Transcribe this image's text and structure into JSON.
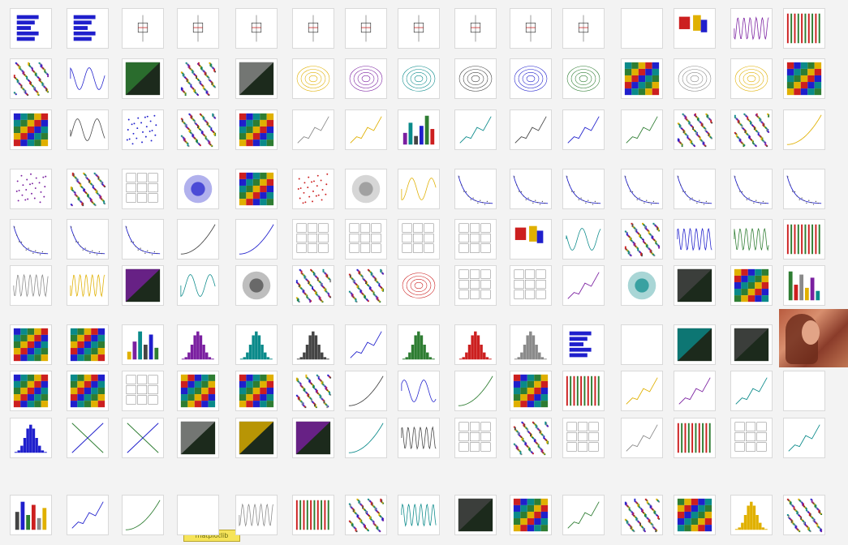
{
  "page": {
    "title": ""
  },
  "logo": {
    "label": "matplotlib"
  },
  "palette": [
    "#1f1fcc",
    "#2e7d32",
    "#cc1f1f",
    "#8a8a8a",
    "#e0b000",
    "#7a1fa0",
    "#0a8a8a",
    "#444444"
  ],
  "thumbnails": [
    {
      "kind": "hbar"
    },
    {
      "kind": "hbar"
    },
    {
      "kind": "box"
    },
    {
      "kind": "box"
    },
    {
      "kind": "box"
    },
    {
      "kind": "box"
    },
    {
      "kind": "box"
    },
    {
      "kind": "box"
    },
    {
      "kind": "box"
    },
    {
      "kind": "box"
    },
    {
      "kind": "box"
    },
    {
      "kind": "blank"
    },
    {
      "kind": "rects"
    },
    {
      "kind": "wave"
    },
    {
      "kind": "stripes"
    },
    {
      "kind": "noise"
    },
    {
      "kind": "sine"
    },
    {
      "kind": "dark"
    },
    {
      "kind": "noise"
    },
    {
      "kind": "dark"
    },
    {
      "kind": "contour"
    },
    {
      "kind": "contour"
    },
    {
      "kind": "contour"
    },
    {
      "kind": "contour"
    },
    {
      "kind": "contour"
    },
    {
      "kind": "contour"
    },
    {
      "kind": "heat"
    },
    {
      "kind": "contour"
    },
    {
      "kind": "contour"
    },
    {
      "kind": "heat"
    },
    {
      "kind": "heat"
    },
    {
      "kind": "sine"
    },
    {
      "kind": "scatter"
    },
    {
      "kind": "noise"
    },
    {
      "kind": "heat"
    },
    {
      "kind": "line"
    },
    {
      "kind": "line"
    },
    {
      "kind": "bars"
    },
    {
      "kind": "line"
    },
    {
      "kind": "line"
    },
    {
      "kind": "line"
    },
    {
      "kind": "line"
    },
    {
      "kind": "noise"
    },
    {
      "kind": "noise"
    },
    {
      "kind": "curve"
    },
    {
      "kind": "scatter"
    },
    {
      "kind": "noise"
    },
    {
      "kind": "grid"
    },
    {
      "kind": "blob"
    },
    {
      "kind": "heat"
    },
    {
      "kind": "scatter"
    },
    {
      "kind": "blob"
    },
    {
      "kind": "sine"
    },
    {
      "kind": "decay"
    },
    {
      "kind": "decay"
    },
    {
      "kind": "decay"
    },
    {
      "kind": "decay"
    },
    {
      "kind": "decay"
    },
    {
      "kind": "decay"
    },
    {
      "kind": "decay"
    },
    {
      "kind": "decay"
    },
    {
      "kind": "decay"
    },
    {
      "kind": "decay"
    },
    {
      "kind": "curve"
    },
    {
      "kind": "curve"
    },
    {
      "kind": "grid"
    },
    {
      "kind": "grid"
    },
    {
      "kind": "grid"
    },
    {
      "kind": "grid"
    },
    {
      "kind": "rects"
    },
    {
      "kind": "sine"
    },
    {
      "kind": "noise"
    },
    {
      "kind": "wave"
    },
    {
      "kind": "wave"
    },
    {
      "kind": "stripes"
    },
    {
      "kind": "wave"
    },
    {
      "kind": "wave"
    },
    {
      "kind": "dark"
    },
    {
      "kind": "sine"
    },
    {
      "kind": "blob"
    },
    {
      "kind": "noise"
    },
    {
      "kind": "noise"
    },
    {
      "kind": "contour"
    },
    {
      "kind": "grid"
    },
    {
      "kind": "grid"
    },
    {
      "kind": "line"
    },
    {
      "kind": "blob"
    },
    {
      "kind": "dark"
    },
    {
      "kind": "heat"
    },
    {
      "kind": "bars"
    },
    {
      "kind": "heat"
    },
    {
      "kind": "heat"
    },
    {
      "kind": "bars"
    },
    {
      "kind": "hist"
    },
    {
      "kind": "hist"
    },
    {
      "kind": "hist"
    },
    {
      "kind": "line"
    },
    {
      "kind": "hist"
    },
    {
      "kind": "hist"
    },
    {
      "kind": "hist"
    },
    {
      "kind": "hbar"
    },
    {
      "kind": "blank"
    },
    {
      "kind": "dark"
    },
    {
      "kind": "dark"
    },
    {
      "kind": "blank"
    },
    {
      "kind": "heat"
    },
    {
      "kind": "heat"
    },
    {
      "kind": "grid"
    },
    {
      "kind": "heat"
    },
    {
      "kind": "heat"
    },
    {
      "kind": "noise"
    },
    {
      "kind": "curve"
    },
    {
      "kind": "sine"
    },
    {
      "kind": "curve"
    },
    {
      "kind": "heat"
    },
    {
      "kind": "stripes"
    },
    {
      "kind": "line"
    },
    {
      "kind": "line"
    },
    {
      "kind": "line"
    },
    {
      "kind": "blank"
    },
    {
      "kind": "hist"
    },
    {
      "kind": "cross"
    },
    {
      "kind": "cross"
    },
    {
      "kind": "dark"
    },
    {
      "kind": "dark"
    },
    {
      "kind": "dark"
    },
    {
      "kind": "curve"
    },
    {
      "kind": "wave"
    },
    {
      "kind": "grid"
    },
    {
      "kind": "noise"
    },
    {
      "kind": "grid"
    },
    {
      "kind": "line"
    },
    {
      "kind": "stripes"
    },
    {
      "kind": "grid"
    },
    {
      "kind": "line"
    },
    {
      "kind": "bars"
    },
    {
      "kind": "line"
    },
    {
      "kind": "curve"
    },
    {
      "kind": "blank"
    },
    {
      "kind": "wave"
    },
    {
      "kind": "stripes"
    },
    {
      "kind": "noise"
    },
    {
      "kind": "wave"
    },
    {
      "kind": "dark"
    },
    {
      "kind": "heat"
    },
    {
      "kind": "line"
    },
    {
      "kind": "noise"
    },
    {
      "kind": "heat"
    },
    {
      "kind": "hist"
    },
    {
      "kind": "noise"
    }
  ]
}
